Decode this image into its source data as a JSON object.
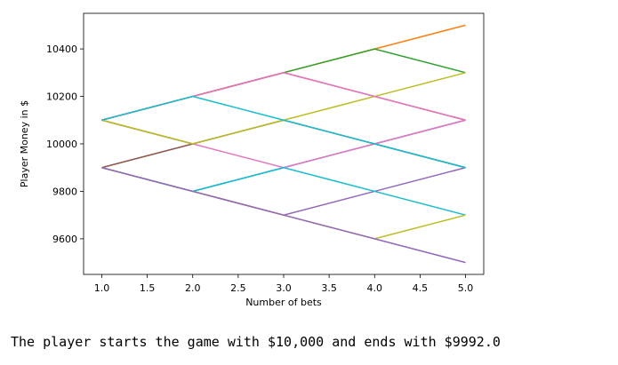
{
  "chart_data": {
    "type": "line",
    "xlabel": "Number of bets",
    "ylabel": "Player Money in $",
    "x": [
      1,
      2,
      3,
      4,
      5
    ],
    "xlim": [
      0.8,
      5.2
    ],
    "xticks": [
      {
        "value": 1,
        "label": "1.0"
      },
      {
        "value": 1.5,
        "label": "1.5"
      },
      {
        "value": 2,
        "label": "2.0"
      },
      {
        "value": 2.5,
        "label": "2.5"
      },
      {
        "value": 3,
        "label": "3.0"
      },
      {
        "value": 3.5,
        "label": "3.5"
      },
      {
        "value": 4,
        "label": "4.0"
      },
      {
        "value": 4.5,
        "label": "4.5"
      },
      {
        "value": 5,
        "label": "5.0"
      }
    ],
    "ylim": [
      9450,
      10550
    ],
    "yticks": [
      9600,
      9800,
      10000,
      10200,
      10400
    ],
    "grid": false,
    "series": [
      {
        "color": "#1f77b4",
        "values": [
          9900,
          9800,
          9900,
          10000,
          10100
        ]
      },
      {
        "color": "#ff7f0e",
        "values": [
          10100,
          10200,
          10300,
          10400,
          10500
        ]
      },
      {
        "color": "#2ca02c",
        "values": [
          10100,
          10200,
          10300,
          10400,
          10300
        ]
      },
      {
        "color": "#d62728",
        "values": [
          10100,
          10200,
          10300,
          10200,
          10100
        ]
      },
      {
        "color": "#9467bd",
        "values": [
          9900,
          9800,
          9700,
          9800,
          9900
        ]
      },
      {
        "color": "#8c564b",
        "values": [
          9900,
          10000,
          10100,
          10000,
          9900
        ]
      },
      {
        "color": "#e377c2",
        "values": [
          10100,
          10000,
          9900,
          10000,
          10100
        ]
      },
      {
        "color": "#7f7f7f",
        "values": [
          10100,
          10000,
          10100,
          10000,
          9900
        ]
      },
      {
        "color": "#bcbd22",
        "values": [
          10100,
          10000,
          10100,
          10200,
          10300
        ]
      },
      {
        "color": "#17becf",
        "values": [
          9900,
          9800,
          9900,
          9800,
          9700
        ]
      },
      {
        "color": "#e377c2",
        "values": [
          10100,
          10200,
          10300,
          10200,
          10100
        ]
      },
      {
        "color": "#bcbd22",
        "values": [
          9900,
          9800,
          9700,
          9600,
          9700
        ]
      },
      {
        "color": "#17becf",
        "values": [
          10100,
          10200,
          10100,
          10000,
          9900
        ]
      },
      {
        "color": "#9467bd",
        "values": [
          9900,
          9800,
          9700,
          9600,
          9500
        ]
      }
    ]
  },
  "output_text": "The player starts the game with $10,000 and ends with $9992.0"
}
